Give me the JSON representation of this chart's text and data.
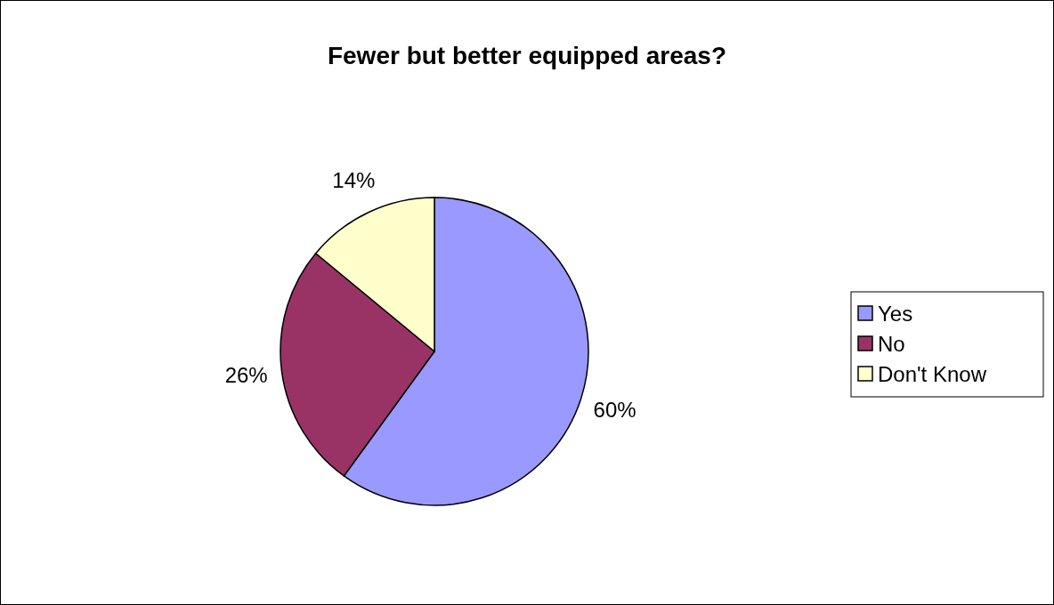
{
  "chart_data": {
    "type": "pie",
    "title": "Fewer but better equipped areas?",
    "categories": [
      "Yes",
      "No",
      "Don't Know"
    ],
    "values": [
      60,
      26,
      14
    ],
    "colors": [
      "#9999ff",
      "#993366",
      "#ffffcc"
    ],
    "value_labels": [
      "60%",
      "26%",
      "14%"
    ],
    "legend": "right"
  }
}
